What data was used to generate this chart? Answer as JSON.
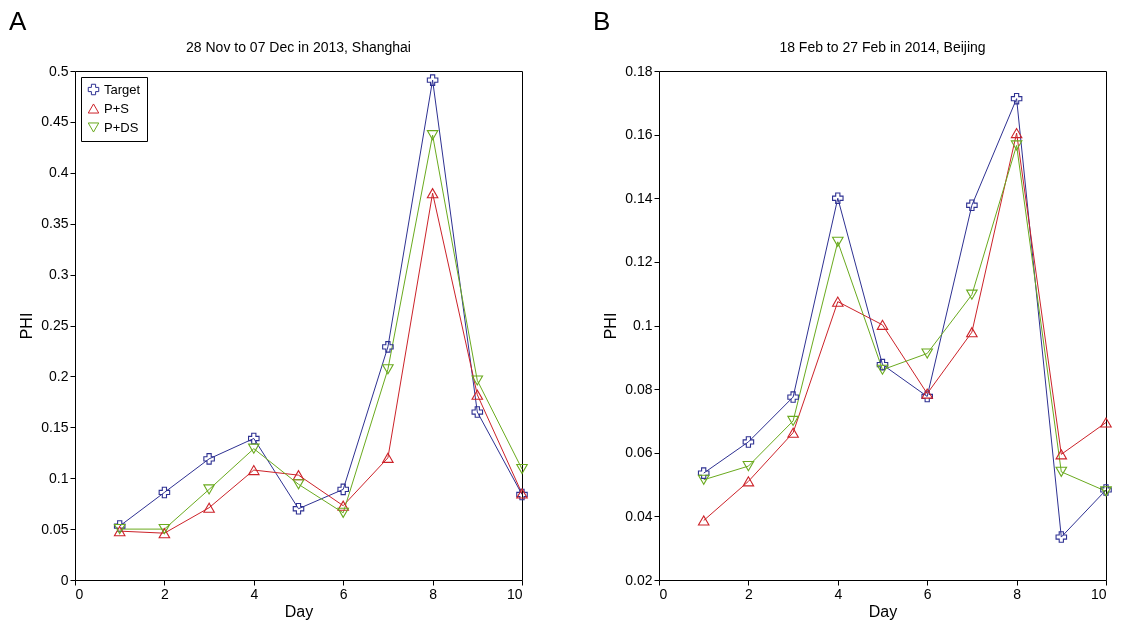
{
  "chart_data": [
    {
      "type": "line",
      "title": "28 Nov to 07 Dec in 2013, Shanghai",
      "xlabel": "Day",
      "ylabel": "PHI",
      "annotations": [
        "A"
      ],
      "x": [
        1,
        2,
        3,
        4,
        5,
        6,
        7,
        8,
        9,
        10
      ],
      "xlim": [
        0,
        10
      ],
      "xticks": [
        0,
        2,
        4,
        6,
        8,
        10
      ],
      "ylim": [
        0,
        0.5
      ],
      "yticks": [
        0,
        0.05,
        0.1,
        0.15,
        0.2,
        0.25,
        0.3,
        0.35,
        0.4,
        0.45,
        0.5
      ],
      "grid": false,
      "legend": "top left",
      "series": [
        {
          "name": "Target",
          "color": "#2e3192",
          "marker": "cross",
          "values": [
            0.053,
            0.086,
            0.119,
            0.139,
            0.07,
            0.089,
            0.229,
            0.491,
            0.165,
            0.084
          ]
        },
        {
          "name": "P+S",
          "color": "#cc2229",
          "marker": "triangle",
          "values": [
            0.048,
            0.046,
            0.071,
            0.108,
            0.103,
            0.073,
            0.12,
            0.38,
            0.182,
            0.085
          ]
        },
        {
          "name": "P+DS",
          "color": "#6aaa1e",
          "marker": "triangle-down",
          "values": [
            0.05,
            0.05,
            0.089,
            0.129,
            0.094,
            0.066,
            0.207,
            0.437,
            0.196,
            0.109
          ]
        }
      ]
    },
    {
      "type": "line",
      "title": "18 Feb to 27 Feb in 2014, Beijing",
      "xlabel": "Day",
      "ylabel": "PHI",
      "annotations": [
        "B"
      ],
      "x": [
        1,
        2,
        3,
        4,
        5,
        6,
        7,
        8,
        9,
        10
      ],
      "xlim": [
        0,
        10
      ],
      "xticks": [
        0,
        2,
        4,
        6,
        8,
        10
      ],
      "ylim": [
        0.02,
        0.18
      ],
      "yticks": [
        0.02,
        0.04,
        0.06,
        0.08,
        0.1,
        0.12,
        0.14,
        0.16,
        0.18
      ],
      "grid": false,
      "legend": "top left",
      "series": [
        {
          "name": "Target",
          "color": "#2e3192",
          "marker": "cross",
          "values": [
            0.0536,
            0.0634,
            0.0775,
            0.14,
            0.0877,
            0.0777,
            0.1378,
            0.1713,
            0.0335,
            0.0483
          ]
        },
        {
          "name": "P+S",
          "color": "#cc2229",
          "marker": "triangle",
          "values": [
            0.0387,
            0.051,
            0.0663,
            0.1075,
            0.1002,
            0.0786,
            0.0979,
            0.1605,
            0.0595,
            0.0695
          ]
        },
        {
          "name": "P+DS",
          "color": "#6aaa1e",
          "marker": "triangle-down",
          "values": [
            0.0515,
            0.0558,
            0.07,
            0.1263,
            0.0861,
            0.0912,
            0.1097,
            0.1566,
            0.054,
            0.0479
          ]
        }
      ]
    }
  ]
}
